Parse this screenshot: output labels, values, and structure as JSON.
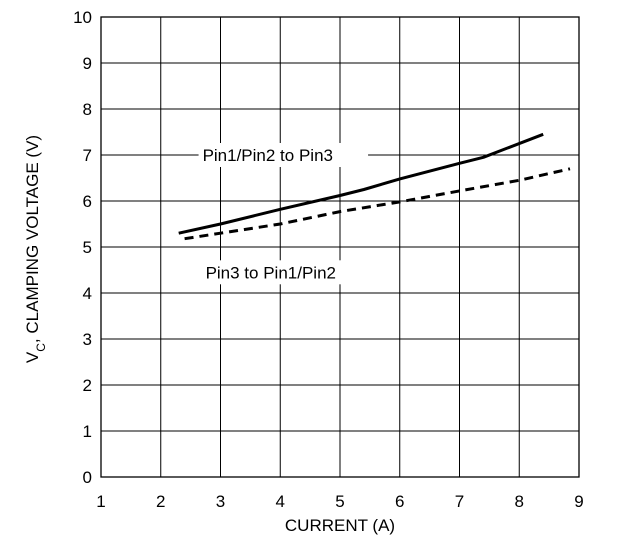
{
  "chart_data": {
    "type": "line",
    "xlabel": "CURRENT (A)",
    "ylabel_main": "V",
    "ylabel_sub": "C",
    "ylabel_rest": ", CLAMPING VOLTAGE (V)",
    "xlim": [
      1,
      9
    ],
    "ylim": [
      0,
      10
    ],
    "x_ticks": [
      "1",
      "2",
      "3",
      "4",
      "5",
      "6",
      "7",
      "8",
      "9"
    ],
    "y_ticks": [
      "0",
      "1",
      "2",
      "3",
      "4",
      "5",
      "6",
      "7",
      "8",
      "9",
      "10"
    ],
    "grid": true,
    "series": [
      {
        "name": "Pin1/Pin2 to Pin3",
        "style": "solid",
        "color": "#000000",
        "x": [
          2.3,
          3.0,
          4.0,
          5.0,
          5.4,
          6.0,
          7.0,
          7.4,
          8.4
        ],
        "y": [
          5.3,
          5.5,
          5.82,
          6.12,
          6.25,
          6.48,
          6.82,
          6.95,
          7.45
        ]
      },
      {
        "name": "Pin3 to Pin1/Pin2",
        "style": "dashed",
        "color": "#000000",
        "x": [
          2.4,
          3.0,
          4.0,
          5.0,
          6.0,
          7.0,
          8.0,
          8.85
        ],
        "y": [
          5.18,
          5.3,
          5.5,
          5.77,
          5.98,
          6.22,
          6.45,
          6.7
        ]
      }
    ]
  }
}
